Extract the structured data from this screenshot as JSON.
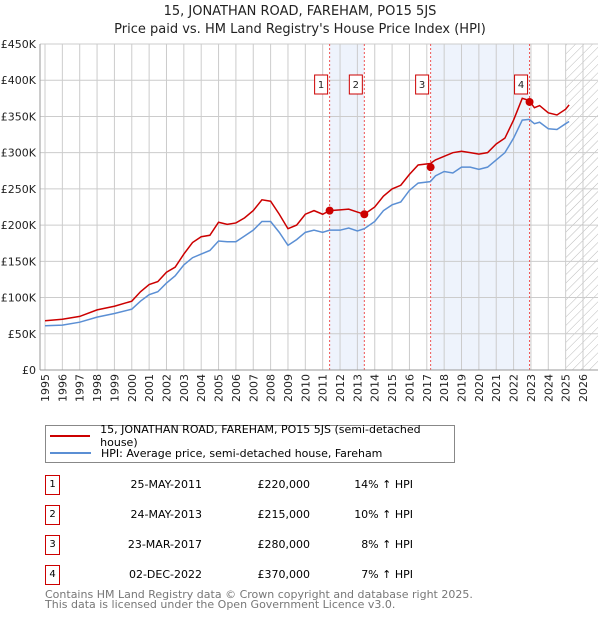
{
  "title": "15, JONATHAN ROAD, FAREHAM, PO15 5JS",
  "subtitle": "Price paid vs. HM Land Registry's House Price Index (HPI)",
  "chart_data": {
    "type": "line",
    "xlim": [
      1995,
      2026
    ],
    "ylim": [
      0,
      450000
    ],
    "x_ticks": [
      "1995",
      "1996",
      "1997",
      "1998",
      "1999",
      "2000",
      "2001",
      "2002",
      "2003",
      "2004",
      "2005",
      "2006",
      "2007",
      "2008",
      "2009",
      "2010",
      "2011",
      "2012",
      "2013",
      "2014",
      "2015",
      "2016",
      "2017",
      "2018",
      "2019",
      "2020",
      "2021",
      "2022",
      "2023",
      "2024",
      "2025",
      "2026"
    ],
    "y_ticks": [
      {
        "v": 0,
        "label": "£0"
      },
      {
        "v": 50000,
        "label": "£50K"
      },
      {
        "v": 100000,
        "label": "£100K"
      },
      {
        "v": 150000,
        "label": "£150K"
      },
      {
        "v": 200000,
        "label": "£200K"
      },
      {
        "v": 250000,
        "label": "£250K"
      },
      {
        "v": 300000,
        "label": "£300K"
      },
      {
        "v": 350000,
        "label": "£350K"
      },
      {
        "v": 400000,
        "label": "£400K"
      },
      {
        "v": 450000,
        "label": "£450K"
      }
    ],
    "grid": true,
    "x": [
      1995,
      1996,
      1997,
      1998,
      1999,
      2000,
      2000.5,
      2001,
      2001.5,
      2002,
      2002.5,
      2003,
      2003.5,
      2004,
      2004.5,
      2005,
      2005.5,
      2006,
      2006.5,
      2007,
      2007.5,
      2008,
      2008.5,
      2009,
      2009.5,
      2010,
      2010.5,
      2011,
      2011.4,
      2012,
      2012.5,
      2013,
      2013.4,
      2014,
      2014.5,
      2015,
      2015.5,
      2016,
      2016.5,
      2017.2,
      2017.5,
      2018,
      2018.5,
      2019,
      2019.5,
      2020,
      2020.5,
      2021,
      2021.5,
      2022,
      2022.5,
      2022.9,
      2023.2,
      2023.5,
      2024,
      2024.5,
      2025,
      2025.2
    ],
    "series": [
      {
        "name": "15, JONATHAN ROAD, FAREHAM, PO15 5JS (semi-detached house)",
        "color": "#cc0000",
        "values": [
          68000,
          70000,
          74000,
          83000,
          88000,
          95000,
          108000,
          118000,
          122000,
          135000,
          142000,
          160000,
          176000,
          184000,
          186000,
          204000,
          201000,
          203000,
          210000,
          220000,
          235000,
          233000,
          215000,
          195000,
          200000,
          215000,
          220000,
          215000,
          220000,
          221000,
          222000,
          218000,
          215000,
          225000,
          240000,
          250000,
          255000,
          270000,
          283000,
          285000,
          290000,
          295000,
          300000,
          302000,
          300000,
          298000,
          300000,
          312000,
          320000,
          345000,
          375000,
          372000,
          362000,
          365000,
          355000,
          352000,
          360000,
          366000
        ]
      },
      {
        "name": "HPI: Average price, semi-detached house, Fareham",
        "color": "#5b8fd4",
        "values": [
          61000,
          62000,
          66000,
          73000,
          78000,
          84000,
          95000,
          104000,
          108000,
          120000,
          130000,
          145000,
          155000,
          160000,
          165000,
          178000,
          177000,
          177000,
          185000,
          193000,
          205000,
          205000,
          190000,
          172000,
          180000,
          190000,
          193000,
          190000,
          193000,
          193000,
          196000,
          192000,
          195000,
          205000,
          220000,
          228000,
          232000,
          248000,
          258000,
          260000,
          268000,
          274000,
          272000,
          280000,
          280000,
          277000,
          280000,
          290000,
          300000,
          320000,
          345000,
          346000,
          340000,
          342000,
          333000,
          332000,
          340000,
          343000
        ]
      }
    ],
    "shaded_ranges": [
      [
        2011.4,
        2013.4
      ],
      [
        2017.22,
        2022.92
      ]
    ],
    "future_hatch_from": 2025.0,
    "sales": [
      {
        "label": "1",
        "x": 2011.4,
        "price": 220000
      },
      {
        "label": "2",
        "x": 2013.4,
        "price": 215000
      },
      {
        "label": "3",
        "x": 2017.22,
        "price": 280000
      },
      {
        "label": "4",
        "x": 2022.92,
        "price": 370000
      }
    ]
  },
  "legend": [
    {
      "label": "15, JONATHAN ROAD, FAREHAM, PO15 5JS (semi-detached house)",
      "color": "#cc0000"
    },
    {
      "label": "HPI: Average price, semi-detached house, Fareham",
      "color": "#5b8fd4"
    }
  ],
  "transactions": [
    {
      "num": "1",
      "date": "25-MAY-2011",
      "price": "£220,000",
      "hpi": "14% ↑ HPI"
    },
    {
      "num": "2",
      "date": "24-MAY-2013",
      "price": "£215,000",
      "hpi": "10% ↑ HPI"
    },
    {
      "num": "3",
      "date": "23-MAR-2017",
      "price": "£280,000",
      "hpi": "8% ↑ HPI"
    },
    {
      "num": "4",
      "date": "02-DEC-2022",
      "price": "£370,000",
      "hpi": "7% ↑ HPI"
    }
  ],
  "footer": [
    "Contains HM Land Registry data © Crown copyright and database right 2025.",
    "This data is licensed under the Open Government Licence v3.0."
  ]
}
